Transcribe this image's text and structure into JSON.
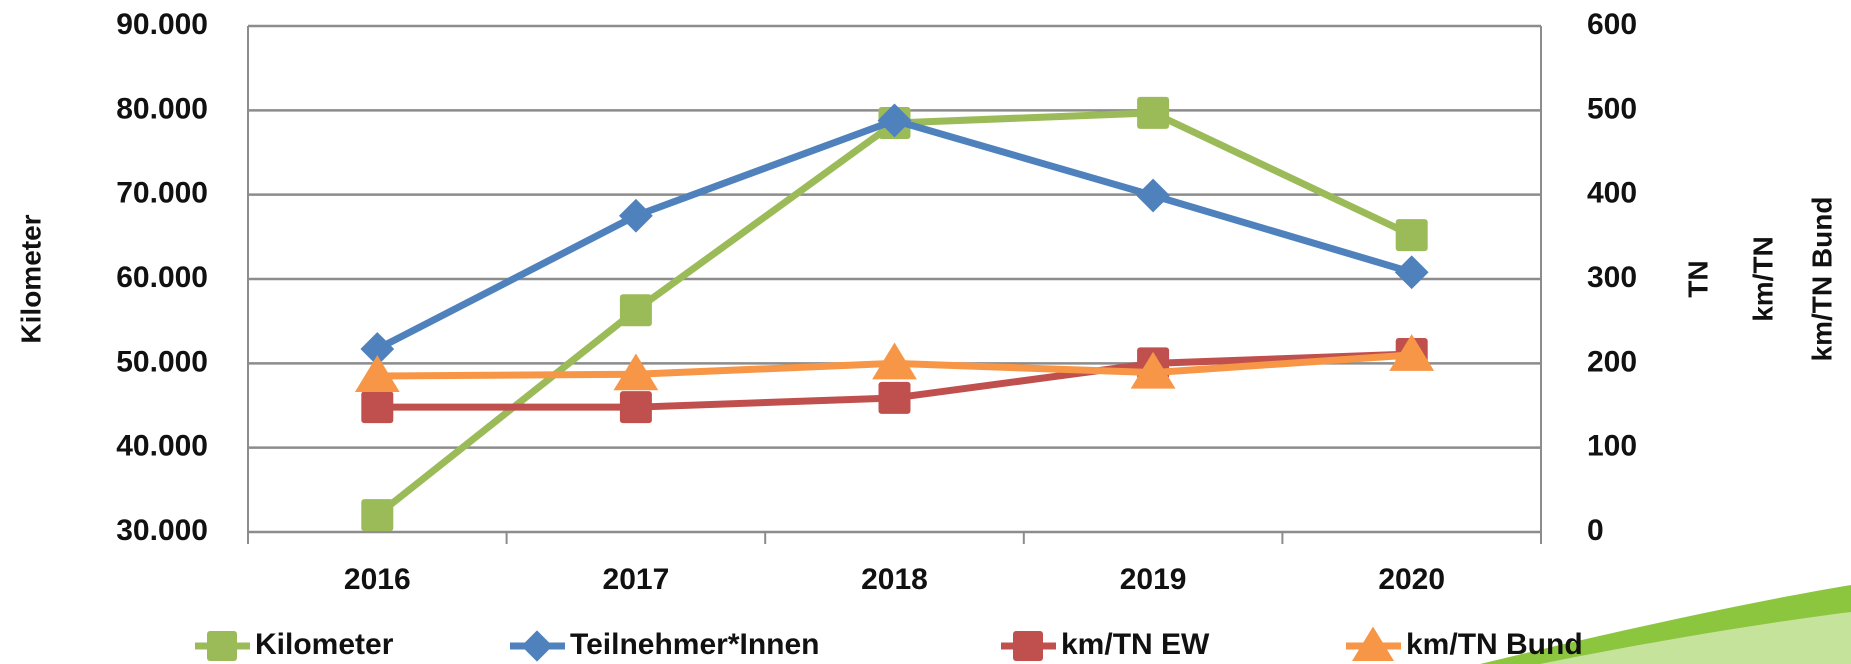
{
  "chart_data": {
    "type": "line",
    "categories": [
      "2016",
      "2017",
      "2018",
      "2019",
      "2020"
    ],
    "series": [
      {
        "name": "Kilometer",
        "color": "#9bbb59",
        "marker": "square",
        "values": [
          32000,
          56300,
          78500,
          79700,
          65200
        ]
      },
      {
        "name": "Teilnehmer*Innen",
        "color": "#4f81bd",
        "marker": "diamond",
        "axis": "y2",
        "values": [
          217,
          375,
          488,
          399,
          308
        ]
      },
      {
        "name": "km/TN EW",
        "color": "#c0504d",
        "marker": "square",
        "axis": "y2",
        "values": [
          148,
          148,
          159,
          200,
          211
        ]
      },
      {
        "name": "km/TN Bund",
        "color": "#f79646",
        "marker": "triangle",
        "axis": "y2",
        "values": [
          185,
          187,
          200,
          189,
          210
        ]
      }
    ],
    "y_label": "Kilometer",
    "y2_labels": [
      "TN",
      "km/TN",
      "km/TN Bund"
    ],
    "ylim": [
      30000,
      90000
    ],
    "yticks": [
      {
        "value": 30000,
        "label": "30.000"
      },
      {
        "value": 40000,
        "label": "40.000"
      },
      {
        "value": 50000,
        "label": "50.000"
      },
      {
        "value": 60000,
        "label": "60.000"
      },
      {
        "value": 70000,
        "label": "70.000"
      },
      {
        "value": 80000,
        "label": "80.000"
      },
      {
        "value": 90000,
        "label": "90.000"
      }
    ],
    "y2lim": [
      0,
      600
    ],
    "y2ticks": [
      0,
      100,
      200,
      300,
      400,
      500,
      600
    ],
    "grid": true,
    "legend": "bottom"
  }
}
